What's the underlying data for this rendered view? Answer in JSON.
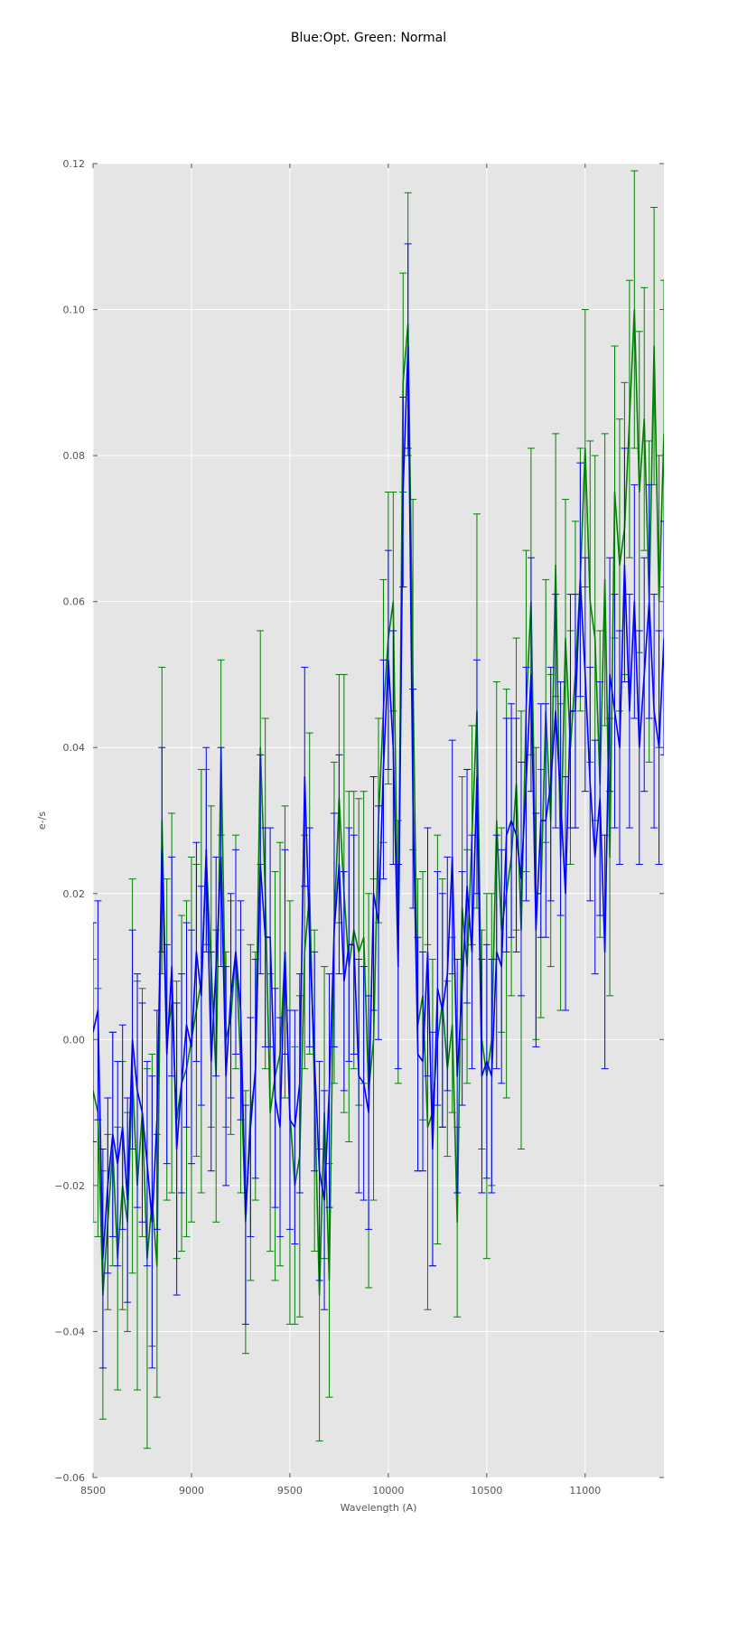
{
  "chart_data": {
    "type": "line",
    "title": "Blue:Opt. Green: Normal",
    "xlabel": "Wavelength (A)",
    "ylabel": "e-/s",
    "xlim": [
      8500,
      11400
    ],
    "ylim": [
      -0.06,
      0.12
    ],
    "xticks": [
      8500,
      9000,
      9500,
      10000,
      10500,
      11000
    ],
    "xtick_labels": [
      "8500",
      "9000",
      "9500",
      "10000",
      "10500",
      "11000"
    ],
    "yticks": [
      -0.06,
      -0.04,
      -0.02,
      0.0,
      0.02,
      0.04,
      0.06,
      0.08,
      0.1,
      0.12
    ],
    "ytick_labels": [
      "−0.06",
      "−0.04",
      "−0.02",
      "0.00",
      "0.02",
      "0.04",
      "0.06",
      "0.08",
      "0.10",
      "0.12"
    ],
    "grid": true,
    "background": "#e5e5e5",
    "grid_color": "#ffffff",
    "errorbars": true,
    "x": [
      8500,
      8525,
      8550,
      8575,
      8600,
      8625,
      8650,
      8675,
      8700,
      8725,
      8750,
      8775,
      8800,
      8825,
      8850,
      8875,
      8900,
      8925,
      8950,
      8975,
      9000,
      9025,
      9050,
      9075,
      9100,
      9125,
      9150,
      9175,
      9200,
      9225,
      9250,
      9275,
      9300,
      9325,
      9350,
      9375,
      9400,
      9425,
      9450,
      9475,
      9500,
      9525,
      9550,
      9575,
      9600,
      9625,
      9650,
      9675,
      9700,
      9725,
      9750,
      9775,
      9800,
      9825,
      9850,
      9875,
      9900,
      9925,
      9950,
      9975,
      10000,
      10025,
      10050,
      10075,
      10100,
      10125,
      10150,
      10175,
      10200,
      10225,
      10250,
      10275,
      10300,
      10325,
      10350,
      10375,
      10400,
      10425,
      10450,
      10475,
      10500,
      10525,
      10550,
      10575,
      10600,
      10625,
      10650,
      10675,
      10700,
      10725,
      10750,
      10775,
      10800,
      10825,
      10850,
      10875,
      10900,
      10925,
      10950,
      10975,
      11000,
      11025,
      11050,
      11075,
      11100,
      11125,
      11150,
      11175,
      11200,
      11225,
      11250,
      11275,
      11300,
      11325,
      11350,
      11375,
      11400
    ],
    "series": [
      {
        "color": "#008000",
        "y": [
          -0.007,
          -0.01,
          -0.035,
          -0.025,
          -0.015,
          -0.03,
          -0.02,
          -0.025,
          -0.005,
          -0.02,
          -0.01,
          -0.03,
          -0.022,
          -0.031,
          0.03,
          0.0,
          0.005,
          -0.011,
          -0.006,
          -0.004,
          0.0,
          0.004,
          0.008,
          0.025,
          0.01,
          -0.005,
          0.04,
          0.0,
          0.003,
          0.012,
          -0.003,
          -0.025,
          -0.01,
          -0.005,
          0.04,
          0.02,
          -0.01,
          -0.005,
          -0.002,
          0.012,
          -0.01,
          -0.02,
          -0.016,
          0.012,
          0.02,
          -0.007,
          -0.035,
          -0.01,
          -0.033,
          0.016,
          0.033,
          0.02,
          0.01,
          0.015,
          0.012,
          0.014,
          -0.007,
          0.0,
          0.03,
          0.045,
          0.055,
          0.06,
          0.012,
          0.09,
          0.098,
          0.05,
          0.002,
          0.006,
          -0.012,
          -0.01,
          0.0,
          0.005,
          -0.004,
          0.002,
          -0.025,
          0.018,
          0.01,
          0.028,
          0.045,
          0.0,
          -0.005,
          0.0,
          0.03,
          0.015,
          0.02,
          0.025,
          0.035,
          0.015,
          0.045,
          0.06,
          0.02,
          0.02,
          0.045,
          0.03,
          0.065,
          0.025,
          0.055,
          0.04,
          0.05,
          0.063,
          0.081,
          0.06,
          0.055,
          0.035,
          0.063,
          0.025,
          0.075,
          0.065,
          0.07,
          0.085,
          0.1,
          0.075,
          0.085,
          0.06,
          0.095,
          0.06,
          0.083
        ],
        "err": [
          0.018,
          0.017,
          0.017,
          0.012,
          0.016,
          0.018,
          0.017,
          0.015,
          0.027,
          0.028,
          0.017,
          0.026,
          0.02,
          0.018,
          0.021,
          0.022,
          0.026,
          0.019,
          0.023,
          0.023,
          0.025,
          0.02,
          0.029,
          0.012,
          0.022,
          0.02,
          0.012,
          0.012,
          0.016,
          0.016,
          0.018,
          0.018,
          0.023,
          0.017,
          0.016,
          0.024,
          0.019,
          0.028,
          0.029,
          0.02,
          0.029,
          0.019,
          0.022,
          0.016,
          0.022,
          0.022,
          0.02,
          0.02,
          0.016,
          0.022,
          0.017,
          0.03,
          0.024,
          0.019,
          0.021,
          0.02,
          0.027,
          0.022,
          0.014,
          0.018,
          0.02,
          0.015,
          0.018,
          0.015,
          0.018,
          0.024,
          0.02,
          0.017,
          0.025,
          0.021,
          0.028,
          0.017,
          0.012,
          0.012,
          0.013,
          0.018,
          0.016,
          0.015,
          0.027,
          0.015,
          0.025,
          0.02,
          0.019,
          0.014,
          0.028,
          0.019,
          0.02,
          0.03,
          0.022,
          0.021,
          0.02,
          0.017,
          0.018,
          0.02,
          0.018,
          0.021,
          0.019,
          0.016,
          0.021,
          0.018,
          0.019,
          0.022,
          0.025,
          0.021,
          0.02,
          0.019,
          0.02,
          0.02,
          0.02,
          0.019,
          0.019,
          0.022,
          0.018,
          0.022,
          0.019,
          0.02,
          0.021
        ]
      },
      {
        "color": "#0000ff",
        "y": [
          0.001,
          0.004,
          -0.03,
          -0.02,
          -0.013,
          -0.017,
          -0.012,
          -0.022,
          0.0,
          -0.007,
          -0.01,
          -0.017,
          -0.025,
          -0.011,
          0.026,
          -0.002,
          0.01,
          -0.015,
          -0.006,
          0.002,
          -0.001,
          0.012,
          0.006,
          0.026,
          -0.003,
          0.01,
          0.025,
          -0.005,
          0.006,
          0.012,
          0.004,
          -0.024,
          -0.012,
          -0.004,
          0.024,
          0.014,
          0.014,
          -0.008,
          -0.012,
          0.012,
          -0.011,
          -0.012,
          -0.006,
          0.036,
          0.014,
          -0.003,
          -0.018,
          -0.022,
          -0.007,
          0.015,
          0.024,
          0.008,
          0.013,
          0.013,
          -0.005,
          -0.006,
          -0.01,
          0.02,
          0.016,
          0.037,
          0.052,
          0.04,
          0.01,
          0.075,
          0.095,
          0.033,
          -0.002,
          -0.003,
          0.012,
          -0.015,
          0.007,
          0.004,
          0.009,
          0.025,
          -0.005,
          0.007,
          0.021,
          0.012,
          0.036,
          -0.005,
          -0.003,
          -0.005,
          0.012,
          0.01,
          0.028,
          0.03,
          0.028,
          0.022,
          0.035,
          0.05,
          0.015,
          0.03,
          0.03,
          0.035,
          0.045,
          0.033,
          0.02,
          0.045,
          0.045,
          0.063,
          0.05,
          0.035,
          0.025,
          0.033,
          0.012,
          0.05,
          0.045,
          0.04,
          0.065,
          0.045,
          0.06,
          0.04,
          0.05,
          0.06,
          0.045,
          0.04,
          0.055
        ],
        "err": [
          0.015,
          0.015,
          0.015,
          0.012,
          0.014,
          0.014,
          0.014,
          0.014,
          0.015,
          0.016,
          0.015,
          0.014,
          0.02,
          0.015,
          0.014,
          0.015,
          0.015,
          0.02,
          0.015,
          0.014,
          0.016,
          0.015,
          0.015,
          0.014,
          0.015,
          0.015,
          0.015,
          0.015,
          0.014,
          0.014,
          0.015,
          0.015,
          0.015,
          0.015,
          0.015,
          0.015,
          0.015,
          0.015,
          0.015,
          0.014,
          0.015,
          0.016,
          0.015,
          0.015,
          0.015,
          0.015,
          0.015,
          0.015,
          0.016,
          0.016,
          0.015,
          0.015,
          0.016,
          0.015,
          0.016,
          0.016,
          0.016,
          0.016,
          0.016,
          0.015,
          0.015,
          0.016,
          0.014,
          0.013,
          0.014,
          0.015,
          0.016,
          0.015,
          0.017,
          0.016,
          0.016,
          0.016,
          0.016,
          0.016,
          0.016,
          0.016,
          0.016,
          0.016,
          0.016,
          0.016,
          0.016,
          0.016,
          0.016,
          0.016,
          0.016,
          0.016,
          0.016,
          0.016,
          0.016,
          0.016,
          0.016,
          0.016,
          0.016,
          0.016,
          0.016,
          0.016,
          0.016,
          0.016,
          0.016,
          0.016,
          0.016,
          0.016,
          0.016,
          0.016,
          0.016,
          0.016,
          0.016,
          0.016,
          0.016,
          0.016,
          0.016,
          0.016,
          0.016,
          0.016,
          0.016,
          0.016,
          0.016
        ]
      }
    ]
  }
}
